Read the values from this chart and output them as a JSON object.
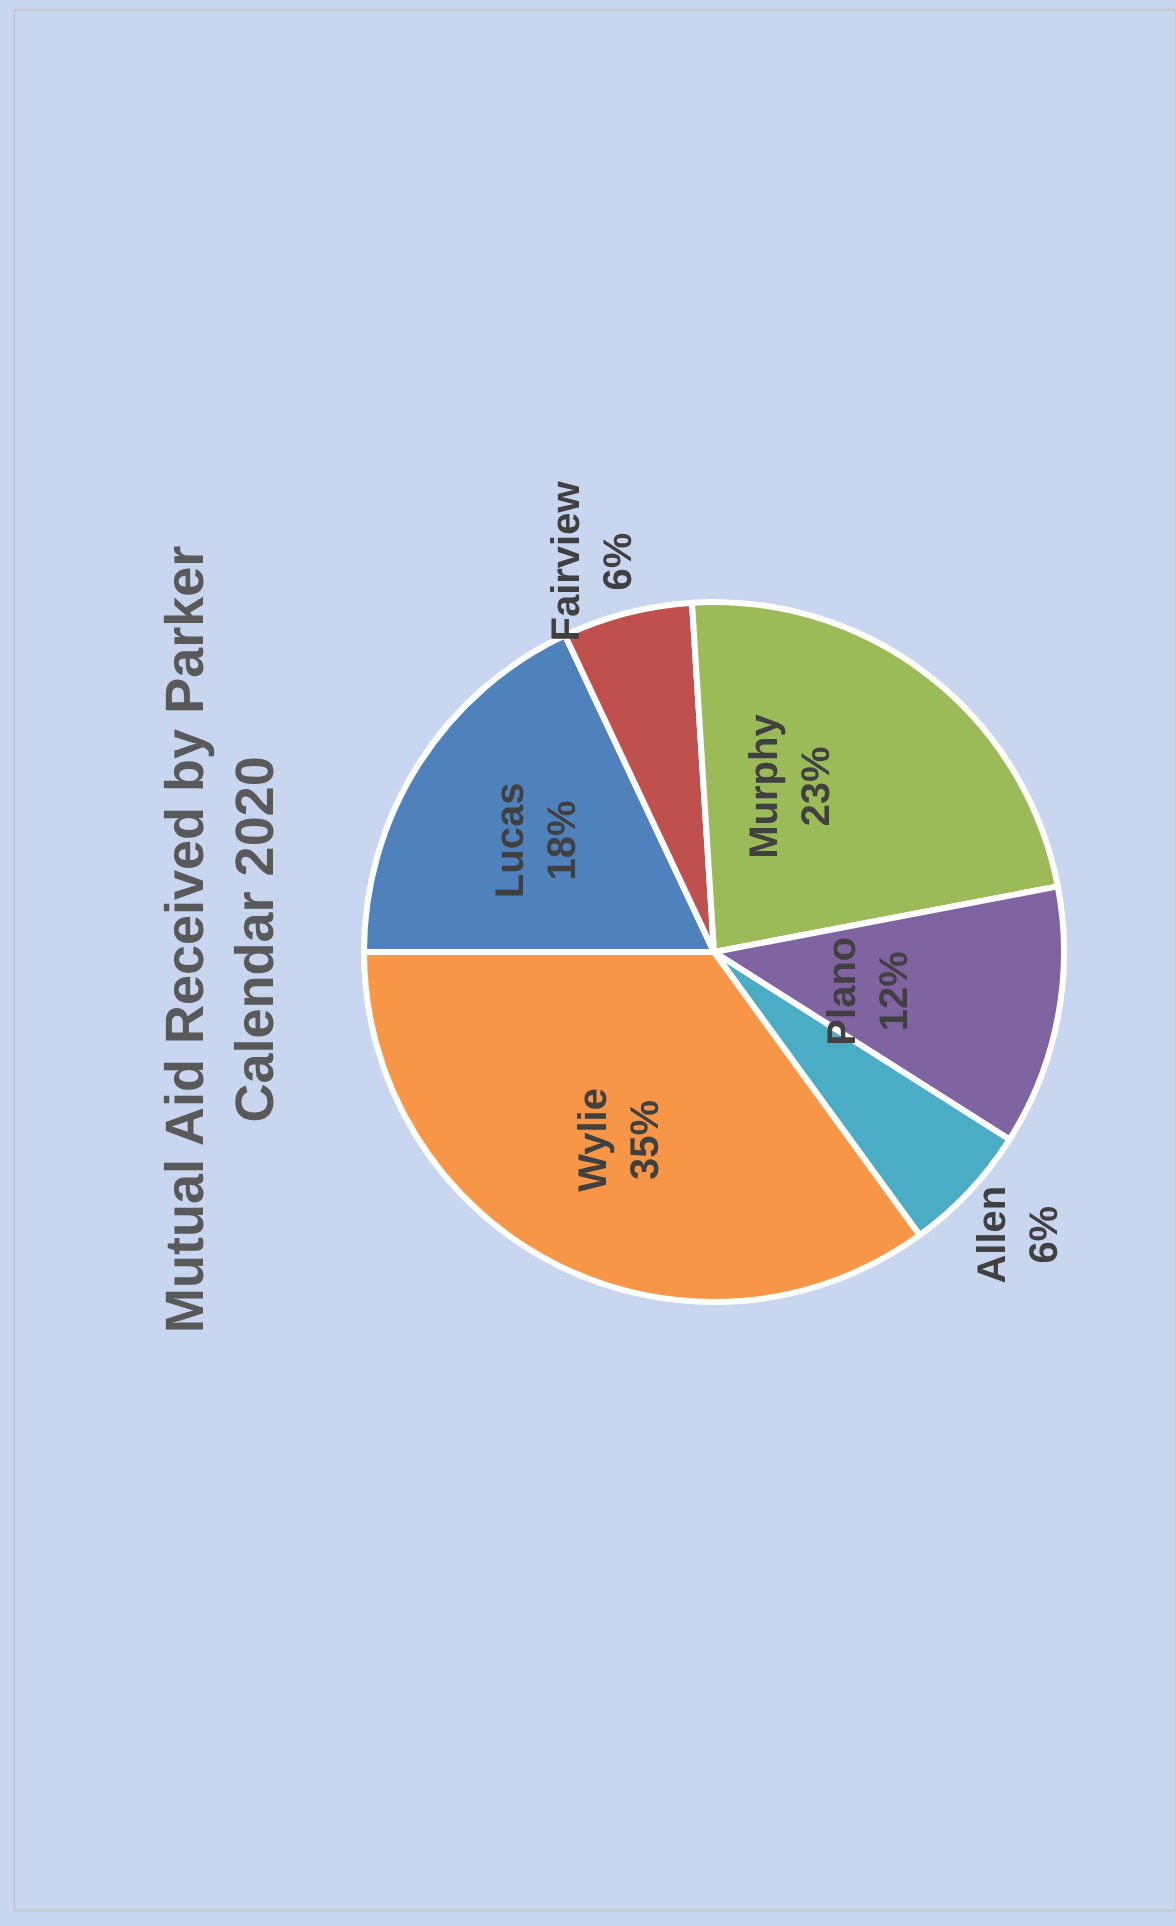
{
  "chart_data": {
    "type": "pie",
    "title": "Mutual Aid Received by Parker\nCalendar 2020",
    "categories": [
      "Lucas",
      "Fairview",
      "Murphy",
      "Plano",
      "Allen",
      "Wylie"
    ],
    "values": [
      18,
      6,
      23,
      12,
      6,
      35
    ],
    "value_labels": [
      "18%",
      "6%",
      "23%",
      "12%",
      "6%",
      "35%"
    ],
    "colors": [
      "#4f81bd",
      "#c0504d",
      "#9bbb59",
      "#8064a2",
      "#4bacc6",
      "#f79646"
    ],
    "legend": false
  }
}
